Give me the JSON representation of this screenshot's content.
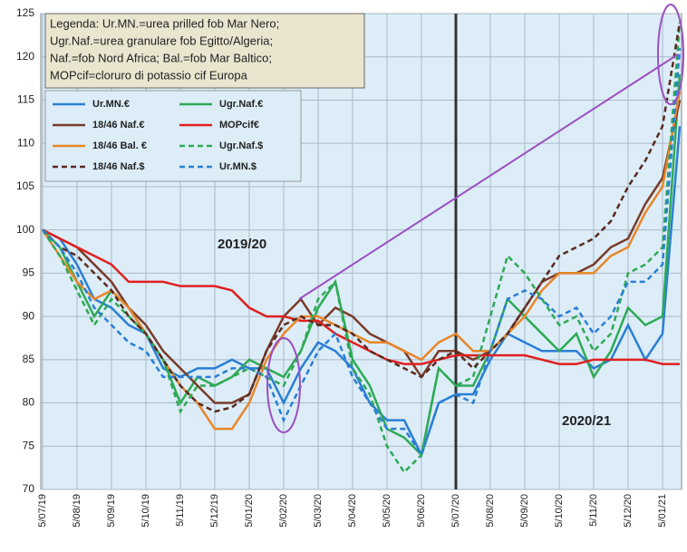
{
  "chart_data": {
    "type": "line",
    "legend_note": [
      "Legenda: Ur.MN.=urea  prilled fob Mar Nero;",
      "Ugr.Naf.=urea granulare  fob Egitto/Algeria;",
      "Naf.=fob Nord Africa; Bal.=fob Mar Baltico;",
      "MOPcif=cloruro di potassio cif Europa"
    ],
    "annotations": [
      "2019/20",
      "2020/21"
    ],
    "categories": [
      "5/07/19",
      null,
      "5/08/19",
      null,
      "5/09/19",
      null,
      "5/10/19",
      null,
      "5/11/19",
      null,
      "5/12/19",
      null,
      "5/01/20",
      null,
      "5/02/20",
      null,
      "5/03/20",
      null,
      "5/04/20",
      null,
      "5/05/20",
      null,
      "5/06/20",
      null,
      "5/07/20",
      null,
      "5/08/20",
      null,
      "5/09/20",
      null,
      "5/10/20",
      null,
      "5/11/20",
      null,
      "5/12/20",
      null,
      "5/01/21",
      null
    ],
    "vertical_line_at": "5/07/20",
    "ylim": [
      70,
      125
    ],
    "yticks": [
      70,
      75,
      80,
      85,
      90,
      95,
      100,
      105,
      110,
      115,
      120,
      125
    ],
    "grid": true,
    "series": [
      {
        "name": "Ur.MN.€",
        "color": "#2a7fd4",
        "dash": false,
        "values": [
          100,
          99,
          96,
          92,
          91,
          89,
          88,
          84,
          83,
          84,
          84,
          85,
          84,
          84,
          80,
          84,
          87,
          86,
          84,
          80,
          78,
          78,
          74,
          80,
          81,
          81,
          85,
          88,
          87,
          86,
          86,
          86,
          84,
          85,
          89,
          85,
          88,
          112
        ]
      },
      {
        "name": "Ugr.Naf.€",
        "color": "#2eaa55",
        "dash": false,
        "values": [
          100,
          98,
          94,
          90,
          93,
          91,
          88,
          85,
          80,
          83,
          82,
          83,
          85,
          84,
          83,
          86,
          91,
          94,
          85,
          82,
          77,
          76,
          74,
          84,
          82,
          82,
          86,
          92,
          90,
          88,
          86,
          88,
          83,
          86,
          91,
          89,
          90,
          118
        ]
      },
      {
        "name": "18/46 Naf.€",
        "color": "#7a3b2a",
        "dash": false,
        "values": [
          100,
          99,
          98,
          96,
          94,
          91,
          89,
          86,
          84,
          82,
          80,
          80,
          81,
          86,
          90,
          92,
          89,
          91,
          90,
          88,
          87,
          86,
          83,
          86,
          86,
          85,
          86,
          88,
          91,
          94,
          95,
          95,
          96,
          98,
          99,
          103,
          106,
          115
        ]
      },
      {
        "name": "MOPcif€",
        "color": "#e02020",
        "dash": false,
        "values": [
          100,
          99,
          98,
          97,
          96,
          94,
          94,
          94,
          93.5,
          93.5,
          93.5,
          93,
          91,
          90,
          90,
          89.5,
          89.5,
          88,
          87,
          86,
          85,
          84.5,
          84.5,
          85,
          85.5,
          85.5,
          85.5,
          85.5,
          85.5,
          85,
          84.5,
          84.5,
          85,
          85,
          85,
          85,
          84.5,
          84.5
        ]
      },
      {
        "name": "18/46 Bal. €",
        "color": "#e8862a",
        "dash": false,
        "values": [
          100,
          97,
          94,
          92,
          93,
          91,
          88,
          85,
          82,
          80,
          77,
          77,
          80,
          85,
          88,
          90,
          90,
          89,
          88,
          87,
          87,
          86,
          85,
          87,
          88,
          86,
          86,
          88,
          90,
          93,
          95,
          95,
          95,
          97,
          98,
          102,
          105,
          116
        ]
      },
      {
        "name": "Ugr.Naf.$",
        "color": "#2eaa55",
        "dash": true,
        "values": [
          100,
          97,
          93,
          89,
          92,
          90,
          88,
          85,
          79,
          82,
          82,
          83,
          84,
          83,
          82,
          86,
          92,
          94,
          84,
          81,
          75,
          72,
          74,
          84,
          82,
          83,
          90,
          97,
          95,
          92,
          89,
          90,
          86,
          88,
          95,
          96,
          98,
          124
        ]
      },
      {
        "name": "18/46 Naf.$",
        "color": "#5a2a1e",
        "dash": true,
        "values": [
          100,
          98,
          97,
          95,
          93,
          90,
          88,
          85,
          82,
          80,
          79,
          79.5,
          81,
          86,
          89,
          90,
          89,
          89,
          88,
          86,
          85,
          84,
          83,
          85,
          86,
          84,
          86,
          88,
          91,
          94,
          97,
          98,
          99,
          101,
          105,
          108,
          112,
          124
        ]
      },
      {
        "name": "Ur.MN.$",
        "color": "#2a7fd4",
        "dash": true,
        "values": [
          100,
          98,
          95,
          91,
          89,
          87,
          86,
          83,
          83,
          83,
          83,
          84,
          84,
          83,
          78,
          82,
          86,
          88,
          83,
          80,
          77,
          77,
          74,
          80,
          81,
          80,
          86,
          92,
          93,
          92,
          90,
          91,
          88,
          90,
          94,
          94,
          96,
          121
        ]
      }
    ]
  }
}
